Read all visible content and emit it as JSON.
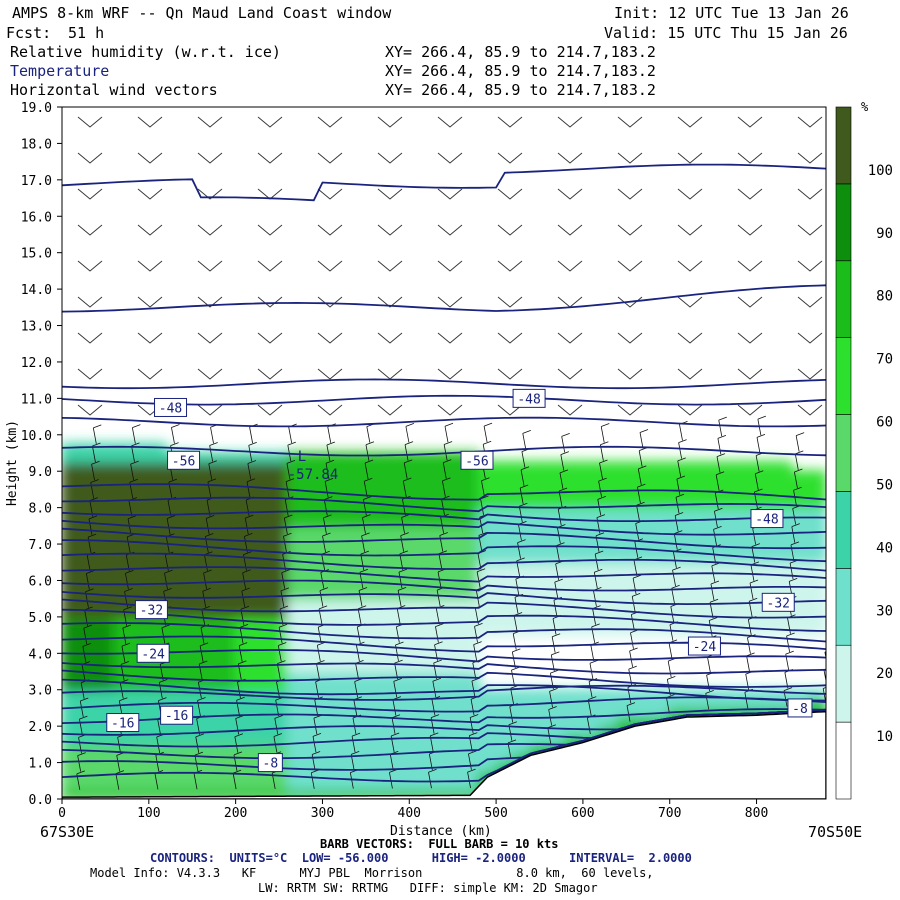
{
  "header": {
    "title": "AMPS 8-km WRF -- Qn Maud Land Coast window",
    "fcst_label": "Fcst:",
    "fcst_value": "51 h",
    "init": "Init: 12 UTC Tue 13 Jan 26",
    "valid": "Valid: 15 UTC Thu 15 Jan 26",
    "fields": [
      {
        "name": "Relative humidity (w.r.t. ice)",
        "xy": "XY= 266.4, 85.9 to 214.7,183.2"
      },
      {
        "name": "Temperature",
        "xy": "XY= 266.4, 85.9 to 214.7,183.2"
      },
      {
        "name": "Horizontal wind vectors",
        "xy": "XY= 266.4, 85.9 to 214.7,183.2"
      }
    ]
  },
  "chart_data": {
    "type": "heatmap",
    "title": "Cross-section: Relative humidity (w.r.t. ice), Temperature, Horizontal wind vectors",
    "xlabel": "Distance (km)",
    "ylabel": "Height (km)",
    "xlim": [
      0,
      880
    ],
    "ylim": [
      0,
      19
    ],
    "x_ticks": [
      0,
      100,
      200,
      300,
      400,
      500,
      600,
      700,
      800
    ],
    "y_ticks": [
      "0.0",
      "1.0",
      "2.0",
      "3.0",
      "4.0",
      "5.0",
      "6.0",
      "7.0",
      "8.0",
      "9.0",
      "10.0",
      "11.0",
      "12.0",
      "13.0",
      "14.0",
      "15.0",
      "16.0",
      "17.0",
      "18.0",
      "19.0"
    ],
    "left_endpoint": "67S30E",
    "right_endpoint": "70S50E",
    "colorbar": {
      "unit": "%",
      "ticks": [
        "10",
        "20",
        "30",
        "40",
        "50",
        "60",
        "70",
        "80",
        "90",
        "100"
      ],
      "bins": [
        {
          "range": [
            0,
            30
          ],
          "color": "#ffffff"
        },
        {
          "range": [
            30,
            40
          ],
          "color": "#cdf5ec"
        },
        {
          "range": [
            40,
            50
          ],
          "color": "#6fe0cc"
        },
        {
          "range": [
            50,
            60
          ],
          "color": "#3dd3a8"
        },
        {
          "range": [
            60,
            70
          ],
          "color": "#5ad86a"
        },
        {
          "range": [
            70,
            80
          ],
          "color": "#2ee02e"
        },
        {
          "range": [
            80,
            90
          ],
          "color": "#1bbd1b"
        },
        {
          "range": [
            90,
            100
          ],
          "color": "#0d8f0d"
        },
        {
          "range": [
            100,
            110
          ],
          "color": "#3f5a1c"
        }
      ]
    },
    "terrain_profile_km": [
      {
        "x": 0,
        "h": 0.05
      },
      {
        "x": 470,
        "h": 0.1
      },
      {
        "x": 490,
        "h": 0.6
      },
      {
        "x": 540,
        "h": 1.2
      },
      {
        "x": 600,
        "h": 1.55
      },
      {
        "x": 660,
        "h": 2.0
      },
      {
        "x": 720,
        "h": 2.25
      },
      {
        "x": 800,
        "h": 2.3
      },
      {
        "x": 880,
        "h": 2.4
      }
    ],
    "temperature_contours": {
      "units": "°C",
      "low": "-56.000",
      "high": "-2.0000",
      "interval": "2.0000",
      "labels": [
        {
          "text": "-48",
          "x": 125,
          "h": 10.75
        },
        {
          "text": "-48",
          "x": 538,
          "h": 11.0
        },
        {
          "text": "-56",
          "x": 140,
          "h": 9.3
        },
        {
          "text": "-56",
          "x": 478,
          "h": 9.3
        },
        {
          "text": "-48",
          "x": 812,
          "h": 7.7
        },
        {
          "text": "-32",
          "x": 103,
          "h": 5.2
        },
        {
          "text": "-32",
          "x": 825,
          "h": 5.4
        },
        {
          "text": "-24",
          "x": 105,
          "h": 4.0
        },
        {
          "text": "-24",
          "x": 740,
          "h": 4.2
        },
        {
          "text": "-16",
          "x": 70,
          "h": 2.1
        },
        {
          "text": "-16",
          "x": 132,
          "h": 2.3
        },
        {
          "text": "-8",
          "x": 240,
          "h": 1.0
        },
        {
          "text": "-8",
          "x": 850,
          "h": 2.5
        }
      ],
      "minimum": {
        "label": "L",
        "value": "-57.84",
        "x": 260,
        "h": 9.0
      }
    }
  },
  "footer": {
    "barb_line": "BARB VECTORS:  FULL BARB = 10 kts",
    "contours_line": "CONTOURS:  UNITS=°C  LOW= -56.000      HIGH= -2.0000      INTERVAL=  2.0000",
    "model_line": "Model Info: V4.3.3   KF      MYJ PBL  Morrison             8.0 km,  60 levels,",
    "phys_line": "LW: RRTM SW: RRTMG   DIFF: simple KM: 2D Smagor"
  }
}
